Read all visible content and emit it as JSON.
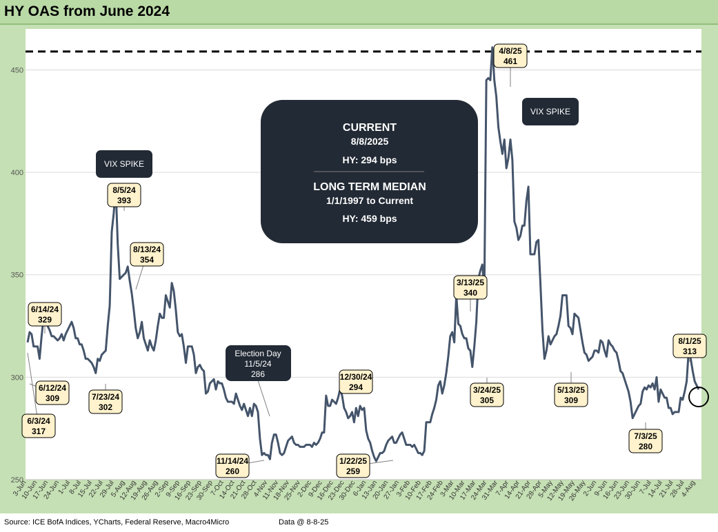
{
  "title": "HY OAS from June 2024",
  "footer": {
    "source": "Source: ICE BofA Indices, YCharts, Federal Reserve, Macro4Micro",
    "data_at": "Data @ 8-8-25"
  },
  "colors": {
    "line": "#44546a",
    "frame": "#c5e0b4",
    "callout_fill": "#fff2cc",
    "dark_box": "#222a35"
  },
  "chart_data": {
    "type": "line",
    "title": "HY OAS from June 2024",
    "ylabel": "",
    "xlabel": "",
    "ylim": [
      250,
      470
    ],
    "yticks": [
      250,
      300,
      350,
      400,
      450
    ],
    "grid": "horizontal",
    "x_tick_labels": [
      "3-Jun",
      "10-Jun",
      "17-Jun",
      "24-Jun",
      "1-Jul",
      "8-Jul",
      "15-Jul",
      "22-Jul",
      "29-Jul",
      "5-Aug",
      "12-Aug",
      "19-Aug",
      "26-Aug",
      "2-Sep",
      "9-Sep",
      "16-Sep",
      "23-Sep",
      "30-Sep",
      "7-Oct",
      "14-Oct",
      "21-Oct",
      "28-Oct",
      "4-Nov",
      "11-Nov",
      "18-Nov",
      "25-Nov",
      "2-Dec",
      "9-Dec",
      "16-Dec",
      "23-Dec",
      "30-Dec",
      "6-Jan",
      "13-Jan",
      "20-Jan",
      "27-Jan",
      "3-Feb",
      "10-Feb",
      "17-Feb",
      "24-Feb",
      "3-Mar",
      "10-Mar",
      "17-Mar",
      "24-Mar",
      "31-Mar",
      "7-Apr",
      "14-Apr",
      "21-Apr",
      "28-Apr",
      "5-May",
      "12-May",
      "19-May",
      "26-May",
      "2-Jun",
      "9-Jun",
      "16-Jun",
      "23-Jun",
      "30-Jun",
      "7-Jul",
      "14-Jul",
      "21-Jul",
      "28-Jul",
      "4-Aug"
    ],
    "series": [
      {
        "name": "HY OAS (bps)",
        "values": [
          317,
          322,
          321,
          315,
          315,
          315,
          309,
          320,
          329,
          328,
          325,
          323,
          320,
          320,
          319,
          318,
          319,
          321,
          318,
          321,
          323,
          325,
          327,
          324,
          319,
          319,
          316,
          316,
          313,
          309,
          309,
          308,
          307,
          305,
          302,
          309,
          308,
          311,
          312,
          313,
          325,
          335,
          371,
          380,
          393,
          365,
          348,
          349,
          350,
          351,
          354,
          347,
          341,
          333,
          324,
          319,
          322,
          327,
          319,
          316,
          313,
          318,
          315,
          313,
          318,
          325,
          331,
          329,
          329,
          340,
          337,
          334,
          346,
          342,
          333,
          322,
          320,
          321,
          315,
          307,
          315,
          315,
          315,
          311,
          302,
          305,
          306,
          304,
          303,
          292,
          293,
          297,
          298,
          299,
          294,
          298,
          297,
          297,
          294,
          290,
          288,
          288,
          288,
          287,
          292,
          289,
          286,
          284,
          287,
          284,
          281,
          285,
          281,
          287,
          286,
          283,
          270,
          262,
          263,
          262,
          262,
          260,
          268,
          272,
          272,
          268,
          263,
          262,
          263,
          266,
          269,
          270,
          271,
          268,
          267,
          267,
          266,
          266,
          266,
          267,
          267,
          267,
          266,
          268,
          267,
          268,
          270,
          273,
          273,
          291,
          286,
          286,
          289,
          288,
          287,
          290,
          294,
          291,
          285,
          283,
          280,
          281,
          283,
          278,
          285,
          281,
          286,
          284,
          285,
          274,
          270,
          268,
          264,
          261,
          259,
          261,
          263,
          263,
          264,
          267,
          269,
          270,
          271,
          268,
          268,
          270,
          272,
          273,
          270,
          267,
          267,
          267,
          266,
          267,
          265,
          263,
          263,
          262,
          264,
          278,
          278,
          278,
          282,
          285,
          289,
          296,
          298,
          292,
          296,
          302,
          310,
          320,
          322,
          317,
          340,
          326,
          325,
          321,
          319,
          319,
          314,
          313,
          305,
          315,
          327,
          348,
          352,
          355,
          342,
          445,
          446,
          445,
          461,
          445,
          437,
          422,
          415,
          409,
          416,
          402,
          407,
          416,
          406,
          376,
          373,
          367,
          369,
          374,
          374,
          386,
          393,
          360,
          360,
          360,
          366,
          367,
          346,
          323,
          309,
          313,
          320,
          316,
          318,
          320,
          321,
          325,
          330,
          340,
          340,
          340,
          325,
          324,
          321,
          331,
          330,
          329,
          323,
          317,
          312,
          311,
          308,
          309,
          310,
          313,
          313,
          312,
          318,
          317,
          313,
          310,
          318,
          316,
          315,
          313,
          312,
          308,
          303,
          302,
          299,
          296,
          293,
          288,
          280,
          282,
          284,
          286,
          287,
          293,
          295,
          294,
          296,
          295,
          297,
          294,
          300,
          288,
          294,
          292,
          290,
          290,
          285,
          285,
          282,
          283,
          283,
          283,
          290,
          289,
          293,
          298,
          313,
          309,
          303,
          298,
          296,
          294
        ],
        "dates_note": "daily series 6/3/24 to 8/8/25"
      }
    ],
    "median_line": {
      "value": 459,
      "style": "dashed"
    },
    "annotations": [
      {
        "id": "a1",
        "date": "6/3/24",
        "value": "317"
      },
      {
        "id": "a2",
        "date": "6/12/24",
        "value": "309"
      },
      {
        "id": "a3",
        "date": "6/14/24",
        "value": "329"
      },
      {
        "id": "a4",
        "date": "7/23/24",
        "value": "302"
      },
      {
        "id": "a5",
        "date": "8/5/24",
        "value": "393"
      },
      {
        "id": "a6",
        "date": "8/13/24",
        "value": "354"
      },
      {
        "id": "a7",
        "date": "11/14/24",
        "value": "260"
      },
      {
        "id": "a8",
        "date": "12/30/24",
        "value": "294"
      },
      {
        "id": "a9",
        "date": "1/22/25",
        "value": "259"
      },
      {
        "id": "a10",
        "date": "3/13/25",
        "value": "340"
      },
      {
        "id": "a11",
        "date": "3/24/25",
        "value": "305"
      },
      {
        "id": "a12",
        "date": "4/8/25",
        "value": "461"
      },
      {
        "id": "a13",
        "date": "5/13/25",
        "value": "309"
      },
      {
        "id": "a14",
        "date": "7/3/25",
        "value": "280"
      },
      {
        "id": "a15",
        "date": "8/1/25",
        "value": "313"
      }
    ],
    "vix_spike_label": "VIX SPIKE",
    "election": {
      "label": "Election Day",
      "date": "11/5/24",
      "value": "286"
    },
    "summary_box": {
      "current_label": "CURRENT",
      "current_date": "8/8/2025",
      "current_value": "HY:   294 bps",
      "median_label": "LONG TERM MEDIAN",
      "median_range": "1/1/1997 to Current",
      "median_value": "HY: 459 bps"
    }
  }
}
